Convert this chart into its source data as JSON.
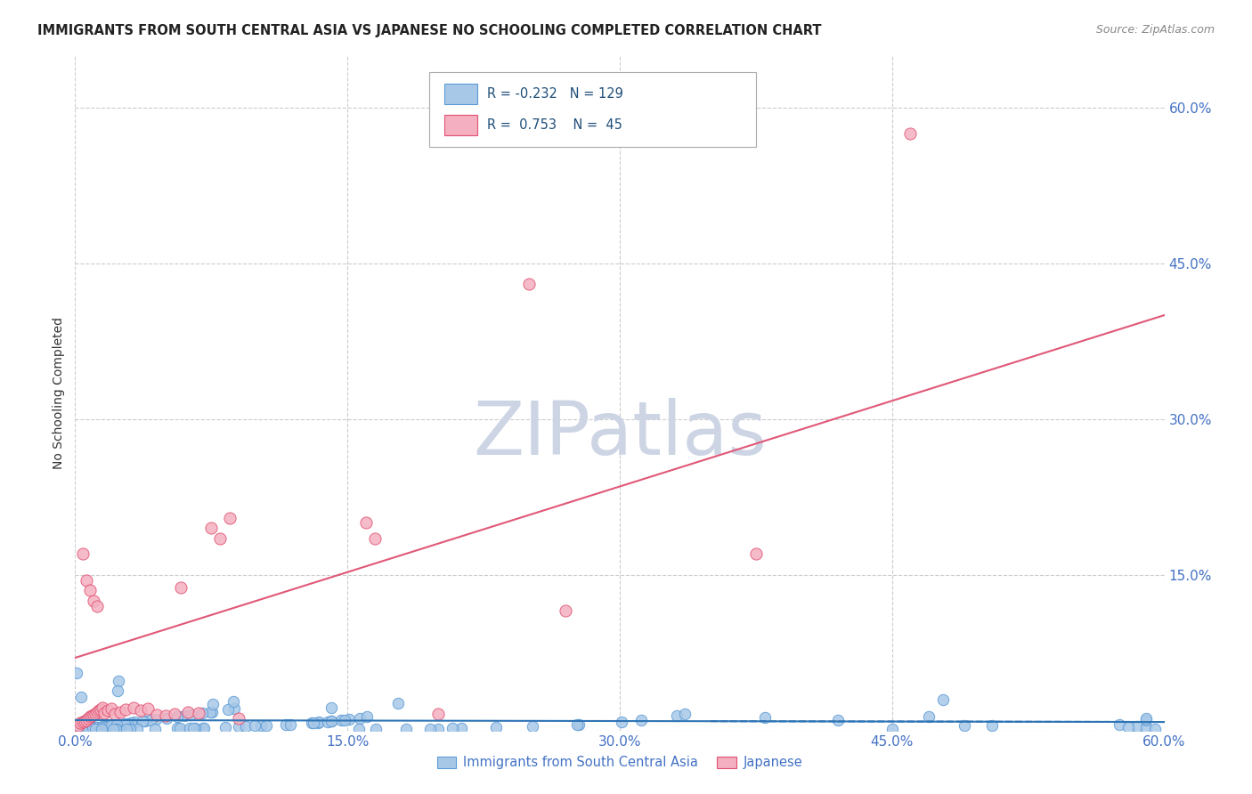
{
  "title": "IMMIGRANTS FROM SOUTH CENTRAL ASIA VS JAPANESE NO SCHOOLING COMPLETED CORRELATION CHART",
  "source": "Source: ZipAtlas.com",
  "ylabel": "No Schooling Completed",
  "xlim": [
    0.0,
    0.6
  ],
  "ylim": [
    0.0,
    0.65
  ],
  "x_ticks": [
    0.0,
    0.15,
    0.3,
    0.45,
    0.6
  ],
  "y_ticks": [
    0.0,
    0.15,
    0.3,
    0.45,
    0.6
  ],
  "blue_color": "#a8c8e8",
  "blue_edge_color": "#5b9bd5",
  "pink_color": "#f4b0c0",
  "pink_edge_color": "#e05070",
  "blue_line_color": "#2e74b5",
  "pink_line_color": "#e05878",
  "legend_text_color": "#1f4e79",
  "axis_label_color": "#4472c4",
  "R_blue": -0.232,
  "N_blue": 129,
  "R_pink": 0.753,
  "N_pink": 45,
  "background_color": "#ffffff",
  "grid_color": "#cccccc",
  "watermark_color": "#cdd5e5",
  "title_color": "#222222",
  "source_color": "#888888"
}
